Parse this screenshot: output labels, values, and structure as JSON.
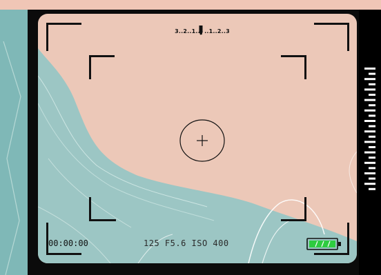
{
  "viewfinder": {
    "ev_scale": "3..2..1..▌..1..2..3",
    "timecode": "00:00:00",
    "exposure_readout": "125 F5.6 ISO 400",
    "battery_level": 1.0,
    "battery_color": "#2ecc40"
  },
  "icons": {
    "ev_marker": "arrow-down-icon",
    "focus": "crosshair-circle-icon",
    "battery": "battery-icon"
  },
  "colors": {
    "screen_bg": "#0b0b0b",
    "sky": "#ecc8b8",
    "water": "#9cc6c4",
    "hud": "#111111"
  }
}
